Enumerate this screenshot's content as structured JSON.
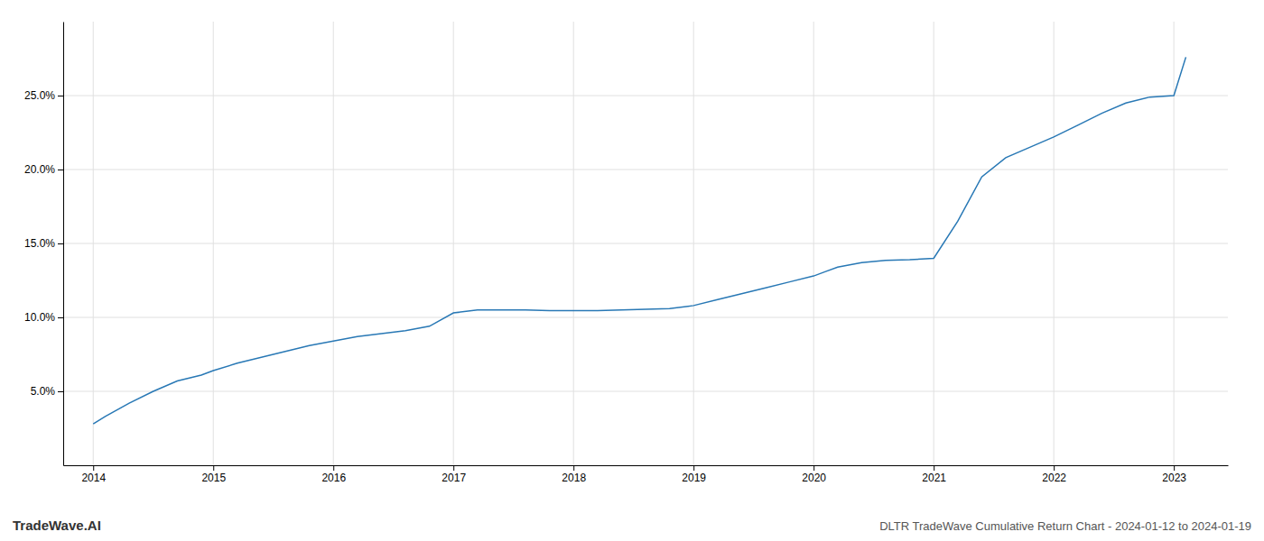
{
  "chart_data": {
    "type": "line",
    "title": "DLTR TradeWave Cumulative Return Chart - 2024-01-12 to 2024-01-19",
    "annotations": [
      "TradeWave.AI"
    ],
    "color": "#2878b5",
    "grid": true,
    "x": [
      2014.0,
      2014.1,
      2014.3,
      2014.5,
      2014.7,
      2014.9,
      2015.0,
      2015.2,
      2015.4,
      2015.6,
      2015.8,
      2016.0,
      2016.2,
      2016.4,
      2016.6,
      2016.8,
      2017.0,
      2017.2,
      2017.4,
      2017.6,
      2017.8,
      2018.0,
      2018.2,
      2018.4,
      2018.6,
      2018.8,
      2019.0,
      2019.2,
      2019.4,
      2019.6,
      2019.8,
      2020.0,
      2020.1,
      2020.2,
      2020.4,
      2020.6,
      2020.8,
      2021.0,
      2021.2,
      2021.4,
      2021.6,
      2021.8,
      2022.0,
      2022.2,
      2022.4,
      2022.6,
      2022.8,
      2023.0,
      2023.1
    ],
    "values": [
      2.8,
      3.3,
      4.2,
      5.0,
      5.7,
      6.1,
      6.4,
      6.9,
      7.3,
      7.7,
      8.1,
      8.4,
      8.7,
      8.9,
      9.1,
      9.4,
      10.3,
      10.5,
      10.5,
      10.5,
      10.45,
      10.45,
      10.45,
      10.5,
      10.55,
      10.6,
      10.8,
      11.2,
      11.6,
      12.0,
      12.4,
      12.8,
      13.1,
      13.4,
      13.7,
      13.85,
      13.9,
      14.0,
      16.5,
      19.5,
      20.8,
      21.5,
      22.2,
      23.0,
      23.8,
      24.5,
      24.9,
      25.0,
      27.6
    ],
    "xlim": [
      2013.75,
      2023.45
    ],
    "xticks": [
      2014,
      2015,
      2016,
      2017,
      2018,
      2019,
      2020,
      2021,
      2022,
      2023
    ],
    "ylim": [
      0.0,
      30.0
    ],
    "yticks": [
      {
        "value": 5.0,
        "label": "5.0%"
      },
      {
        "value": 10.0,
        "label": "10.0%"
      },
      {
        "value": 15.0,
        "label": "15.0%"
      },
      {
        "value": 20.0,
        "label": "20.0%"
      },
      {
        "value": 25.0,
        "label": "25.0%"
      }
    ]
  }
}
